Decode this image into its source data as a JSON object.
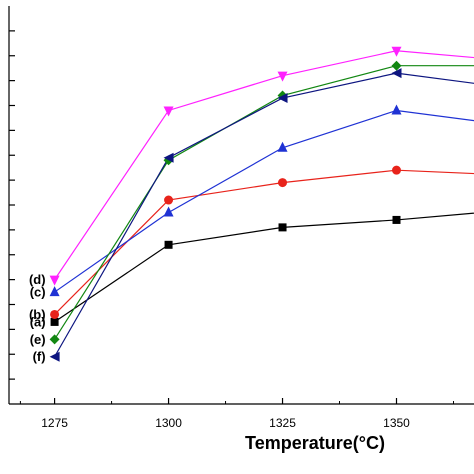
{
  "chart_data": {
    "type": "line",
    "title": "",
    "xlabel": "Temperature(°C)",
    "ylabel": "",
    "x": [
      1275,
      1300,
      1325,
      1350,
      1375
    ],
    "x_tick_labels": [
      "1275",
      "1300",
      "1325",
      "1350"
    ],
    "xlim": [
      1265,
      1367
    ],
    "ylim": [
      0,
      16
    ],
    "y_ticks": [
      1,
      2,
      3,
      4,
      5,
      6,
      7,
      8,
      9,
      10,
      11,
      12,
      13,
      14,
      15
    ],
    "grid": false,
    "series": [
      {
        "name": "(a)",
        "marker": "square",
        "color": "#000000",
        "values": [
          3.3,
          6.4,
          7.1,
          7.4,
          7.8
        ]
      },
      {
        "name": "(b)",
        "marker": "circle",
        "color": "#e8231b",
        "values": [
          3.6,
          8.2,
          8.9,
          9.4,
          9.2
        ]
      },
      {
        "name": "(c)",
        "marker": "triangle-up",
        "color": "#1f32d4",
        "values": [
          4.5,
          7.7,
          10.3,
          11.8,
          11.2
        ]
      },
      {
        "name": "(d)",
        "marker": "triangle-down",
        "color": "#ff21ff",
        "values": [
          5.0,
          11.8,
          13.2,
          14.2,
          13.8
        ]
      },
      {
        "name": "(e)",
        "marker": "diamond",
        "color": "#128712",
        "values": [
          2.6,
          9.8,
          12.4,
          13.6,
          13.6
        ]
      },
      {
        "name": "(f)",
        "marker": "triangle-left",
        "color": "#0d1580",
        "values": [
          1.9,
          9.9,
          12.3,
          13.3,
          12.7
        ]
      }
    ]
  }
}
